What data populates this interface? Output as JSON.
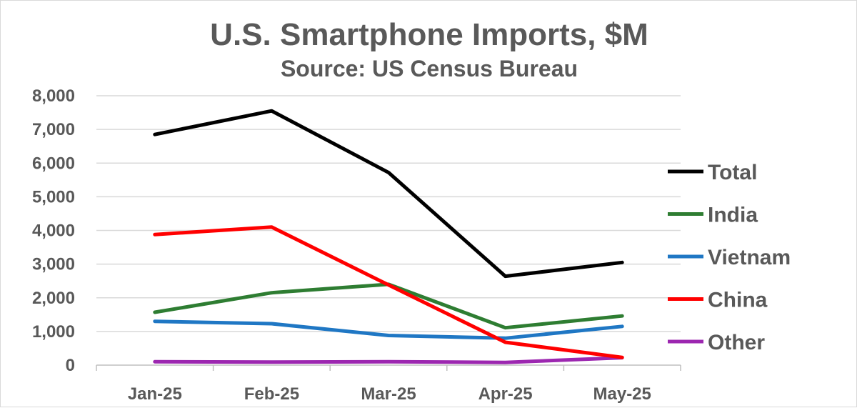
{
  "chart_data": {
    "type": "line",
    "title": "U.S. Smartphone Imports, $M",
    "subtitle": "Source: US Census Bureau",
    "categories": [
      "Jan-25",
      "Feb-25",
      "Mar-25",
      "Apr-25",
      "May-25"
    ],
    "ylim": [
      0,
      8000
    ],
    "yticks": [
      0,
      1000,
      2000,
      3000,
      4000,
      5000,
      6000,
      7000,
      8000
    ],
    "ytick_labels": [
      "0",
      "1,000",
      "2,000",
      "3,000",
      "4,000",
      "5,000",
      "6,000",
      "7,000",
      "8,000"
    ],
    "grid": true,
    "legend_position": "right",
    "series": [
      {
        "name": "Total",
        "color": "#000000",
        "values": [
          6850,
          7550,
          5720,
          2640,
          3050
        ]
      },
      {
        "name": "India",
        "color": "#2e7d32",
        "values": [
          1570,
          2150,
          2400,
          1110,
          1460
        ]
      },
      {
        "name": "Vietnam",
        "color": "#1f77c4",
        "values": [
          1300,
          1230,
          880,
          800,
          1150
        ]
      },
      {
        "name": "China",
        "color": "#ff0000",
        "values": [
          3880,
          4100,
          2380,
          680,
          230
        ]
      },
      {
        "name": "Other",
        "color": "#9c27b0",
        "values": [
          100,
          90,
          100,
          80,
          220
        ]
      }
    ]
  }
}
